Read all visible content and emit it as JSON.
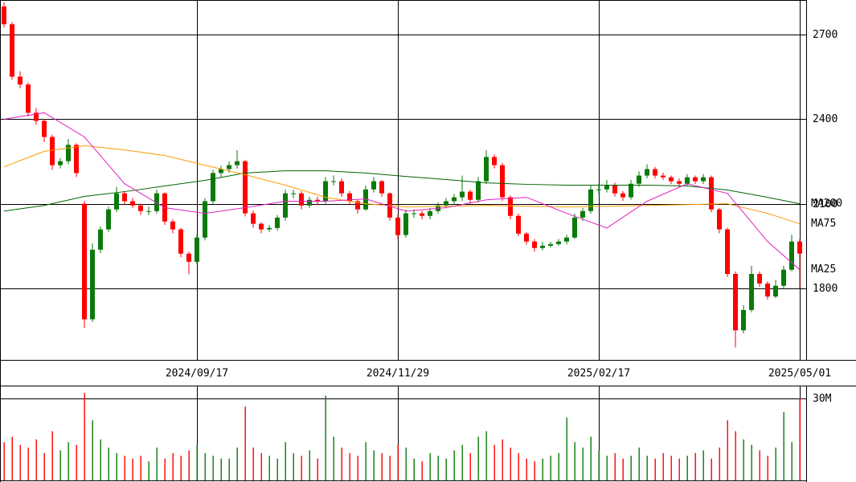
{
  "chart_data": [
    {
      "type": "candlestick",
      "categories": [
        null,
        null,
        null,
        null,
        null,
        null,
        null,
        null,
        null,
        null,
        null,
        null,
        null,
        null,
        null,
        null,
        null,
        null,
        null,
        null,
        null,
        null,
        null,
        null,
        "2024/09/17",
        null,
        null,
        null,
        null,
        null,
        null,
        null,
        null,
        null,
        null,
        null,
        null,
        null,
        null,
        null,
        null,
        null,
        null,
        null,
        null,
        null,
        null,
        null,
        null,
        "2024/11/29",
        null,
        null,
        null,
        null,
        null,
        null,
        null,
        null,
        null,
        null,
        null,
        null,
        null,
        null,
        null,
        null,
        null,
        null,
        null,
        null,
        null,
        null,
        null,
        null,
        "2025/02/17",
        null,
        null,
        null,
        null,
        null,
        null,
        null,
        null,
        null,
        null,
        null,
        null,
        null,
        null,
        null,
        null,
        null,
        null,
        null,
        null,
        null,
        null,
        null,
        null,
        "2025/05/01"
      ],
      "open": [
        2800,
        2737,
        2551,
        2523,
        2423,
        2394,
        2337,
        2237,
        2251,
        2309,
        2100,
        1690,
        1937,
        2009,
        2080,
        2137,
        2109,
        2094,
        2074,
        2074,
        2137,
        2037,
        2009,
        1923,
        1894,
        1980,
        2109,
        2209,
        2223,
        2237,
        2251,
        2066,
        2029,
        2009,
        2014,
        2051,
        2137,
        2137,
        2094,
        2114,
        2109,
        2180,
        2180,
        2137,
        2109,
        2080,
        2151,
        2180,
        2137,
        2051,
        1989,
        2066,
        2066,
        2057,
        2074,
        2094,
        2109,
        2123,
        2143,
        2114,
        2180,
        2266,
        2237,
        2123,
        2057,
        1994,
        1966,
        1943,
        1951,
        1957,
        1966,
        1980,
        2051,
        2074,
        2151,
        2151,
        2166,
        2137,
        2123,
        2171,
        2200,
        2223,
        2200,
        2194,
        2180,
        2171,
        2194,
        2180,
        2194,
        2080,
        2009,
        1851,
        1651,
        1723,
        1851,
        1817,
        1771,
        1809,
        1866,
        1966
      ],
      "high": [
        2815,
        2745,
        2570,
        2530,
        2440,
        2400,
        2345,
        2262,
        2330,
        2315,
        2110,
        1960,
        2020,
        2090,
        2160,
        2145,
        2120,
        2100,
        2090,
        2150,
        2140,
        2045,
        2015,
        1930,
        1990,
        2120,
        2220,
        2235,
        2250,
        2290,
        2255,
        2075,
        2035,
        2025,
        2060,
        2150,
        2150,
        2145,
        2125,
        2125,
        2195,
        2200,
        2190,
        2145,
        2115,
        2165,
        2195,
        2185,
        2140,
        2060,
        2080,
        2080,
        2075,
        2085,
        2105,
        2120,
        2135,
        2200,
        2150,
        2195,
        2290,
        2275,
        2245,
        2130,
        2065,
        2000,
        1975,
        1965,
        1965,
        1975,
        1990,
        2065,
        2085,
        2165,
        2170,
        2185,
        2175,
        2145,
        2185,
        2215,
        2240,
        2230,
        2210,
        2200,
        2190,
        2205,
        2200,
        2205,
        2200,
        2085,
        2015,
        1860,
        1740,
        1880,
        1860,
        1825,
        1830,
        1880,
        1990,
        1975
      ],
      "low": [
        2725,
        2540,
        2510,
        2410,
        2380,
        2320,
        2220,
        2225,
        2240,
        2195,
        1660,
        1680,
        1925,
        2000,
        2070,
        2095,
        2085,
        2060,
        2060,
        2065,
        2025,
        1995,
        1910,
        1850,
        1885,
        1970,
        2100,
        2195,
        2210,
        2225,
        2055,
        2015,
        1995,
        2000,
        2005,
        2040,
        2120,
        2080,
        2085,
        2095,
        2100,
        2165,
        2125,
        2095,
        2065,
        2075,
        2140,
        2125,
        2040,
        1975,
        1980,
        2050,
        2045,
        2045,
        2065,
        2085,
        2095,
        2110,
        2100,
        2105,
        2170,
        2225,
        2110,
        2045,
        1985,
        1955,
        1930,
        1935,
        1945,
        1950,
        1955,
        1975,
        2040,
        2065,
        2135,
        2140,
        2125,
        2110,
        2115,
        2160,
        2190,
        2190,
        2185,
        2170,
        2160,
        2165,
        2170,
        2170,
        2070,
        1995,
        1840,
        1590,
        1640,
        1715,
        1805,
        1760,
        1765,
        1800,
        1860,
        1800
      ],
      "close": [
        2737,
        2551,
        2523,
        2423,
        2394,
        2337,
        2237,
        2251,
        2309,
        2209,
        1690,
        1937,
        2009,
        2080,
        2137,
        2109,
        2094,
        2074,
        2074,
        2137,
        2037,
        2009,
        1923,
        1894,
        1980,
        2109,
        2209,
        2223,
        2237,
        2251,
        2066,
        2029,
        2009,
        2014,
        2051,
        2137,
        2137,
        2094,
        2114,
        2109,
        2180,
        2180,
        2137,
        2109,
        2080,
        2151,
        2180,
        2137,
        2051,
        1989,
        2066,
        2066,
        2057,
        2074,
        2094,
        2109,
        2123,
        2143,
        2114,
        2180,
        2266,
        2237,
        2123,
        2057,
        1994,
        1966,
        1943,
        1951,
        1957,
        1966,
        1980,
        2051,
        2074,
        2151,
        2151,
        2166,
        2137,
        2123,
        2171,
        2200,
        2223,
        2200,
        2194,
        2180,
        2171,
        2194,
        2180,
        2194,
        2080,
        2009,
        1851,
        1651,
        1723,
        1851,
        1817,
        1771,
        1809,
        1866,
        1966,
        1923
      ],
      "up_color": "#0a7a0a",
      "down_color": "#ff0000",
      "series": [
        {
          "name": "MA200",
          "color": "#006400",
          "x": [
            0,
            5,
            10,
            15,
            20,
            25,
            30,
            35,
            40,
            45,
            50,
            55,
            60,
            65,
            70,
            75,
            80,
            85,
            90,
            95,
            99
          ],
          "values": [
            2074,
            2094,
            2126,
            2143,
            2163,
            2183,
            2209,
            2217,
            2217,
            2209,
            2197,
            2186,
            2174,
            2169,
            2166,
            2166,
            2166,
            2163,
            2149,
            2123,
            2100
          ]
        },
        {
          "name": "MA75",
          "color": "#ff9900",
          "x": [
            0,
            5,
            10,
            15,
            20,
            25,
            30,
            35,
            40,
            45,
            50,
            55,
            60,
            65,
            70,
            75,
            80,
            85,
            90,
            95,
            99
          ],
          "values": [
            2231,
            2286,
            2306,
            2291,
            2271,
            2237,
            2203,
            2166,
            2123,
            2100,
            2089,
            2091,
            2094,
            2091,
            2089,
            2091,
            2094,
            2097,
            2100,
            2066,
            2029
          ]
        },
        {
          "name": "MA25",
          "color": "#e020c0",
          "x": [
            0,
            5,
            10,
            15,
            20,
            25,
            30,
            35,
            40,
            45,
            50,
            55,
            60,
            65,
            70,
            75,
            80,
            85,
            90,
            95,
            99
          ],
          "values": [
            2400,
            2423,
            2337,
            2171,
            2086,
            2066,
            2086,
            2109,
            2109,
            2117,
            2074,
            2086,
            2114,
            2123,
            2066,
            2014,
            2109,
            2171,
            2137,
            1966,
            1866
          ]
        }
      ],
      "ylim": [
        1546,
        2823
      ],
      "yticks": [
        1800,
        2100,
        2400,
        2700
      ],
      "grid": true
    },
    {
      "type": "bar",
      "values": [
        14,
        16,
        13,
        12,
        15,
        10,
        18,
        11,
        14,
        13,
        32,
        22,
        15,
        12,
        10,
        9,
        8,
        9,
        7,
        12,
        8,
        10,
        9,
        11,
        13,
        10,
        9,
        8,
        8,
        12,
        27,
        12,
        10,
        9,
        8,
        14,
        10,
        9,
        11,
        8,
        31,
        16,
        12,
        10,
        9,
        14,
        11,
        10,
        9,
        13,
        12,
        8,
        7,
        10,
        9,
        8,
        11,
        13,
        10,
        16,
        18,
        13,
        15,
        12,
        10,
        8,
        7,
        8,
        9,
        10,
        23,
        14,
        12,
        16,
        11,
        9,
        10,
        8,
        9,
        12,
        9,
        8,
        10,
        9,
        8,
        9,
        10,
        11,
        8,
        12,
        22,
        18,
        15,
        13,
        11,
        9,
        12,
        25,
        14,
        30
      ],
      "ylim": [
        0,
        34.7
      ],
      "yticks": [
        {
          "value": 30,
          "label": "30M"
        }
      ]
    }
  ]
}
